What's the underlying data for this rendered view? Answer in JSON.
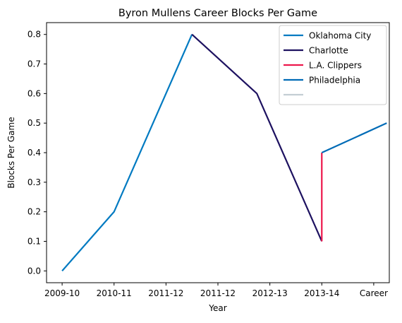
{
  "chart_data": {
    "type": "line",
    "title": "Byron Mullens Career Blocks Per Game",
    "xlabel": "Year",
    "ylabel": "Blocks Per Game",
    "x_tick_labels": [
      "2009-10",
      "2010-11",
      "2011-12",
      "2011-12",
      "2012-13",
      "2013-14",
      "Career"
    ],
    "y_ticks": [
      0.0,
      0.1,
      0.2,
      0.3,
      0.4,
      0.5,
      0.6,
      0.7,
      0.8
    ],
    "y_tick_labels": [
      "0.0",
      "0.1",
      "0.2",
      "0.3",
      "0.4",
      "0.5",
      "0.6",
      "0.7",
      "0.8"
    ],
    "ylim": [
      -0.04,
      0.84
    ],
    "xlim": [
      -0.3,
      6.3
    ],
    "grid": false,
    "legend_position": "top-right",
    "series": [
      {
        "name": "Oklahoma City",
        "color": "#007AC1",
        "points": [
          [
            0,
            0.0
          ],
          [
            1,
            0.2
          ],
          [
            2.5,
            0.8
          ]
        ]
      },
      {
        "name": "Charlotte",
        "color": "#1D1160",
        "points": [
          [
            2.5,
            0.8
          ],
          [
            3.75,
            0.6
          ],
          [
            5,
            0.1
          ]
        ]
      },
      {
        "name": "L.A. Clippers",
        "color": "#ED174C",
        "points": [
          [
            5,
            0.1
          ],
          [
            5,
            0.4
          ]
        ]
      },
      {
        "name": "Philadelphia",
        "color": "#006BB6",
        "points": [
          [
            5,
            0.4
          ],
          [
            6.25,
            0.5
          ]
        ]
      },
      {
        "name": "",
        "color": "#C4CED4",
        "points": []
      }
    ]
  }
}
